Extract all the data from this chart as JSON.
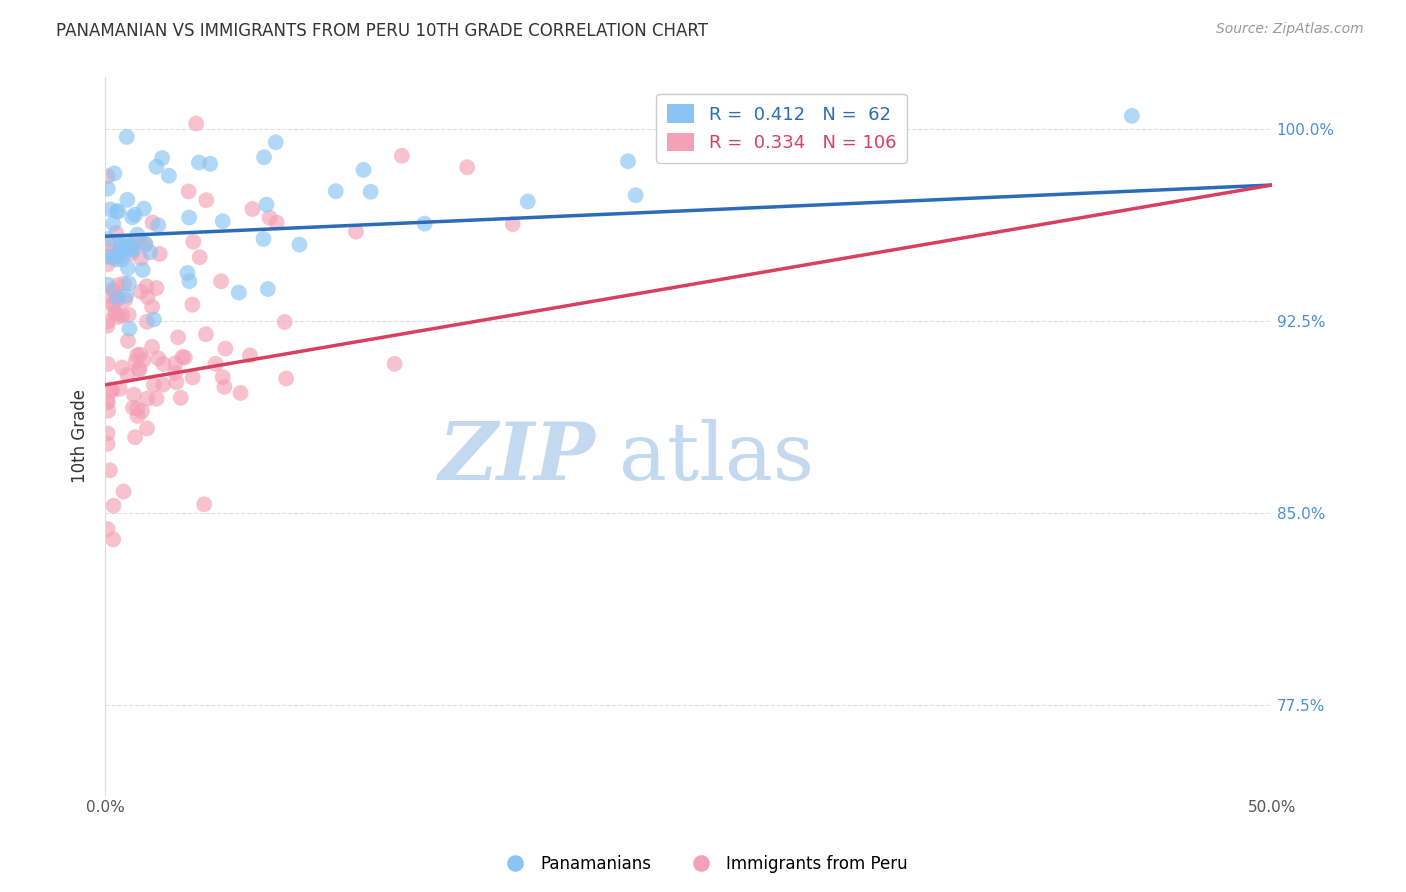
{
  "title": "PANAMANIAN VS IMMIGRANTS FROM PERU 10TH GRADE CORRELATION CHART",
  "source": "Source: ZipAtlas.com",
  "ylabel": "10th Grade",
  "yaxis_labels": [
    "100.0%",
    "92.5%",
    "85.0%",
    "77.5%"
  ],
  "yaxis_values": [
    1.0,
    0.925,
    0.85,
    0.775
  ],
  "blue_R": "0.412",
  "blue_N": "62",
  "pink_R": "0.334",
  "pink_N": "106",
  "blue_color": "#89C4F4",
  "pink_color": "#F4A0B5",
  "blue_line_color": "#2B6CB8",
  "pink_line_color": "#D94060",
  "watermark_ZIP_color": "#BDD5EE",
  "watermark_atlas_color": "#BDD5EE",
  "background_color": "#FFFFFF",
  "grid_color": "#CCCCCC",
  "title_color": "#333333",
  "right_axis_color": "#4A90D9",
  "xlim": [
    0.0,
    0.5
  ],
  "ylim": [
    0.74,
    1.02
  ]
}
